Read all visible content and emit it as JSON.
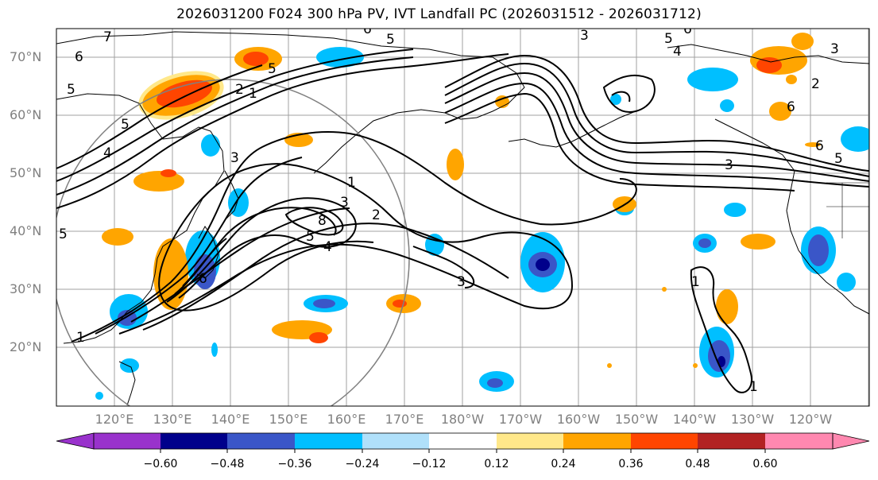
{
  "title": "2026031200 F024 300 hPa PV, IVT Landfall PC (2026031512 - 2026031712)",
  "lat_labels": [
    "70°N",
    "60°N",
    "50°N",
    "40°N",
    "30°N",
    "20°N"
  ],
  "lon_labels": [
    "120°E",
    "130°E",
    "140°E",
    "150°E",
    "160°E",
    "170°E",
    "180°W",
    "170°W",
    "160°W",
    "150°W",
    "140°W",
    "130°W",
    "120°W"
  ],
  "colorbar": {
    "ticks": [
      "−0.60",
      "−0.48",
      "−0.36",
      "−0.24",
      "−0.12",
      "0.12",
      "0.24",
      "0.36",
      "0.48",
      "0.60"
    ],
    "colors": [
      "#9932cc",
      "#00008b",
      "#3a56c8",
      "#00bfff",
      "#b0e0fa",
      "#ffffff",
      "#ffe88a",
      "#ffa500",
      "#ff4500",
      "#b22222",
      "#ff88b0"
    ]
  },
  "contour_labels": [
    {
      "text": "6"
    },
    {
      "text": "7"
    },
    {
      "text": "5"
    },
    {
      "text": "2"
    },
    {
      "text": "1"
    },
    {
      "text": "5"
    },
    {
      "text": "5"
    },
    {
      "text": "6"
    },
    {
      "text": "3"
    },
    {
      "text": "5"
    },
    {
      "text": "4"
    },
    {
      "text": "2"
    },
    {
      "text": "3"
    },
    {
      "text": "6"
    },
    {
      "text": "5"
    },
    {
      "text": "3"
    },
    {
      "text": "4"
    },
    {
      "text": "5"
    },
    {
      "text": "1"
    },
    {
      "text": "3"
    },
    {
      "text": "2"
    },
    {
      "text": "8"
    },
    {
      "text": "5"
    },
    {
      "text": "4"
    },
    {
      "text": "3"
    },
    {
      "text": "1"
    },
    {
      "text": "1"
    },
    {
      "text": "6"
    },
    {
      "text": "6"
    },
    {
      "text": "5"
    },
    {
      "text": "6"
    },
    {
      "text": "3"
    },
    {
      "text": "1"
    }
  ]
}
